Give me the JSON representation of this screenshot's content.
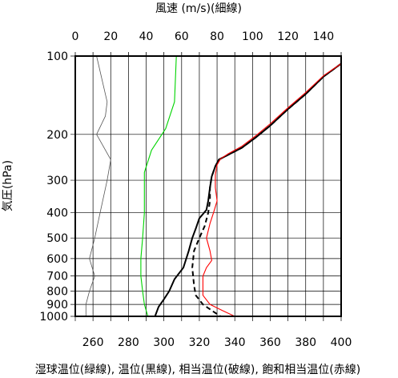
{
  "chart_data": {
    "type": "line",
    "top_axis": {
      "label": "風速 (m/s)(細線)",
      "range": [
        0,
        150
      ],
      "ticks": [
        "0",
        "20",
        "40",
        "60",
        "80",
        "100",
        "120",
        "140"
      ]
    },
    "bottom_axis": {
      "label": "湿球温位(緑線), 温位(黒線), 相当温位(破線), 飽和相当温位(赤線)",
      "range": [
        250,
        400
      ],
      "ticks": [
        "260",
        "280",
        "300",
        "320",
        "340",
        "360",
        "380",
        "400"
      ]
    },
    "y_axis": {
      "label": "気圧(hPa)",
      "scale": "log",
      "inverted": true,
      "range": [
        1000,
        100
      ],
      "ticks": [
        "100",
        "200",
        "300",
        "400",
        "500",
        "600",
        "700",
        "800",
        "900",
        "1000"
      ]
    },
    "grid": true,
    "series": [
      {
        "axis": "top",
        "color": "#555555",
        "style": "thin",
        "points": [
          [
            12,
            100
          ],
          [
            18,
            150
          ],
          [
            17,
            170
          ],
          [
            12,
            200
          ],
          [
            20,
            250
          ],
          [
            18,
            300
          ],
          [
            14,
            400
          ],
          [
            11,
            500
          ],
          [
            8,
            600
          ],
          [
            11,
            700
          ],
          [
            8,
            800
          ],
          [
            6,
            900
          ],
          [
            6,
            1000
          ]
        ]
      },
      {
        "axis": "bottom",
        "color": "#00d400",
        "style": "solid",
        "points": [
          [
            307,
            100
          ],
          [
            306,
            150
          ],
          [
            301,
            190
          ],
          [
            293,
            230
          ],
          [
            289,
            280
          ],
          [
            289,
            350
          ],
          [
            289,
            400
          ],
          [
            288,
            500
          ],
          [
            287,
            600
          ],
          [
            287,
            700
          ],
          [
            288,
            800
          ],
          [
            289,
            900
          ],
          [
            291,
            1000
          ]
        ]
      },
      {
        "axis": "bottom",
        "color": "#000000",
        "style": "solid",
        "points": [
          [
            400,
            107
          ],
          [
            390,
            120
          ],
          [
            380,
            140
          ],
          [
            370,
            160
          ],
          [
            360,
            185
          ],
          [
            352,
            205
          ],
          [
            344,
            225
          ],
          [
            336,
            240
          ],
          [
            331,
            250
          ],
          [
            329,
            265
          ],
          [
            327,
            290
          ],
          [
            326,
            320
          ],
          [
            325,
            360
          ],
          [
            324,
            390
          ],
          [
            320,
            420
          ],
          [
            318,
            460
          ],
          [
            316,
            500
          ],
          [
            314,
            560
          ],
          [
            311,
            650
          ],
          [
            306,
            720
          ],
          [
            303,
            800
          ],
          [
            300,
            860
          ],
          [
            297,
            920
          ],
          [
            295,
            1000
          ]
        ]
      },
      {
        "axis": "bottom",
        "color": "#000000",
        "style": "dashed",
        "points": [
          [
            400,
            107
          ],
          [
            390,
            120
          ],
          [
            380,
            140
          ],
          [
            370,
            160
          ],
          [
            360,
            185
          ],
          [
            352,
            205
          ],
          [
            344,
            225
          ],
          [
            336,
            240
          ],
          [
            331,
            250
          ],
          [
            329,
            265
          ],
          [
            327,
            290
          ],
          [
            326,
            320
          ],
          [
            326,
            360
          ],
          [
            325,
            400
          ],
          [
            323,
            450
          ],
          [
            320,
            500
          ],
          [
            317,
            560
          ],
          [
            316,
            650
          ],
          [
            317,
            760
          ],
          [
            318,
            830
          ],
          [
            322,
            900
          ],
          [
            328,
            960
          ],
          [
            332,
            1000
          ]
        ]
      },
      {
        "axis": "bottom",
        "color": "#ff0000",
        "style": "solid",
        "points": [
          [
            400,
            107
          ],
          [
            390,
            119
          ],
          [
            380,
            138
          ],
          [
            370,
            158
          ],
          [
            360,
            182
          ],
          [
            352,
            202
          ],
          [
            344,
            222
          ],
          [
            336,
            238
          ],
          [
            332,
            248
          ],
          [
            330,
            262
          ],
          [
            329,
            285
          ],
          [
            329,
            320
          ],
          [
            330,
            360
          ],
          [
            328,
            400
          ],
          [
            326,
            440
          ],
          [
            324,
            500
          ],
          [
            326,
            560
          ],
          [
            327,
            610
          ],
          [
            324,
            650
          ],
          [
            322,
            700
          ],
          [
            322,
            760
          ],
          [
            322,
            830
          ],
          [
            326,
            900
          ],
          [
            333,
            950
          ],
          [
            340,
            1000
          ]
        ]
      }
    ]
  }
}
